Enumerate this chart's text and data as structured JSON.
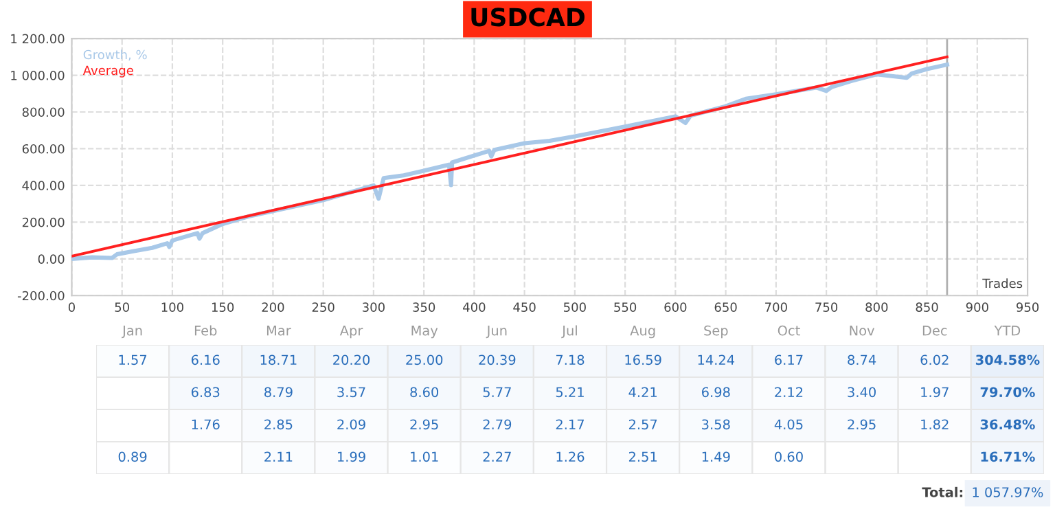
{
  "chart_data": [
    {
      "type": "line",
      "title": "USDCAD",
      "xlabel": "Trades",
      "legend": "top left",
      "grid": true,
      "line_style": "solid",
      "xlim": [
        0,
        950
      ],
      "xticks": [
        0,
        50,
        100,
        150,
        200,
        250,
        300,
        350,
        400,
        450,
        500,
        550,
        600,
        650,
        700,
        750,
        800,
        850,
        900,
        950
      ],
      "ylim": [
        -200,
        1200
      ],
      "yticks": [
        {
          "value": -200,
          "label": "-200.00"
        },
        {
          "value": 0,
          "label": "0.00"
        },
        {
          "value": 200,
          "label": "200.00"
        },
        {
          "value": 400,
          "label": "400.00"
        },
        {
          "value": 600,
          "label": "600.00"
        },
        {
          "value": 800,
          "label": "800.00"
        },
        {
          "value": 1000,
          "label": "1 000.00"
        },
        {
          "value": 1200,
          "label": "1 200.00"
        }
      ],
      "ref_lines": [
        {
          "axis": "x",
          "value": 870,
          "color": "#b0b0b0"
        }
      ],
      "series": [
        {
          "name": "Growth, %",
          "color": "#a8c8e8",
          "x": [
            0,
            20,
            40,
            45,
            60,
            80,
            95,
            97,
            100,
            125,
            127,
            130,
            150,
            175,
            200,
            225,
            250,
            275,
            300,
            305,
            310,
            330,
            350,
            375,
            377,
            378,
            400,
            415,
            417,
            420,
            450,
            475,
            500,
            550,
            600,
            610,
            615,
            650,
            670,
            700,
            740,
            750,
            755,
            775,
            800,
            830,
            835,
            850,
            870
          ],
          "values": [
            0,
            8,
            5,
            25,
            40,
            60,
            85,
            65,
            100,
            140,
            110,
            140,
            190,
            230,
            260,
            290,
            320,
            360,
            400,
            328,
            440,
            455,
            480,
            513,
            402,
            525,
            563,
            588,
            558,
            593,
            630,
            643,
            667,
            720,
            776,
            740,
            780,
            831,
            872,
            896,
            933,
            915,
            935,
            969,
            1005,
            986,
            1010,
            1034,
            1058
          ]
        },
        {
          "name": "Average",
          "color": "#ff2020",
          "x": [
            0,
            870
          ],
          "values": [
            15,
            1100
          ]
        }
      ]
    },
    {
      "type": "heatmap",
      "y_categories": [
        null,
        null,
        null,
        null
      ],
      "categories": [
        "Jan",
        "Feb",
        "Mar",
        "Apr",
        "May",
        "Jun",
        "Jul",
        "Aug",
        "Sep",
        "Oct",
        "Nov",
        "Dec",
        "YTD"
      ],
      "cells": [
        [
          1.57,
          6.16,
          18.71,
          20.2,
          25.0,
          20.39,
          7.18,
          16.59,
          14.24,
          6.17,
          8.74,
          6.02,
          304.58
        ],
        [
          null,
          6.83,
          8.79,
          3.57,
          8.6,
          5.77,
          5.21,
          4.21,
          6.98,
          2.12,
          3.4,
          1.97,
          79.7
        ],
        [
          null,
          1.76,
          2.85,
          2.09,
          2.95,
          2.79,
          2.17,
          2.57,
          3.58,
          4.05,
          2.95,
          1.82,
          36.48
        ],
        [
          0.89,
          null,
          2.11,
          1.99,
          1.01,
          2.27,
          1.26,
          2.51,
          1.49,
          0.6,
          null,
          null,
          16.71
        ]
      ],
      "cell_labels": [
        [
          "1.57",
          "6.16",
          "18.71",
          "20.20",
          "25.00",
          "20.39",
          "7.18",
          "16.59",
          "14.24",
          "6.17",
          "8.74",
          "6.02",
          "304.58%"
        ],
        [
          null,
          "6.83",
          "8.79",
          "3.57",
          "8.60",
          "5.77",
          "5.21",
          "4.21",
          "6.98",
          "2.12",
          "3.40",
          "1.97",
          "79.70%"
        ],
        [
          null,
          "1.76",
          "2.85",
          "2.09",
          "2.95",
          "2.79",
          "2.17",
          "2.57",
          "3.58",
          "4.05",
          "2.95",
          "1.82",
          "36.48%"
        ],
        [
          "0.89",
          null,
          "2.11",
          "1.99",
          "1.01",
          "2.27",
          "1.26",
          "2.51",
          "1.49",
          "0.60",
          null,
          null,
          "16.71%"
        ]
      ],
      "annotations": [
        "Total:",
        "1 057.97%"
      ]
    }
  ]
}
